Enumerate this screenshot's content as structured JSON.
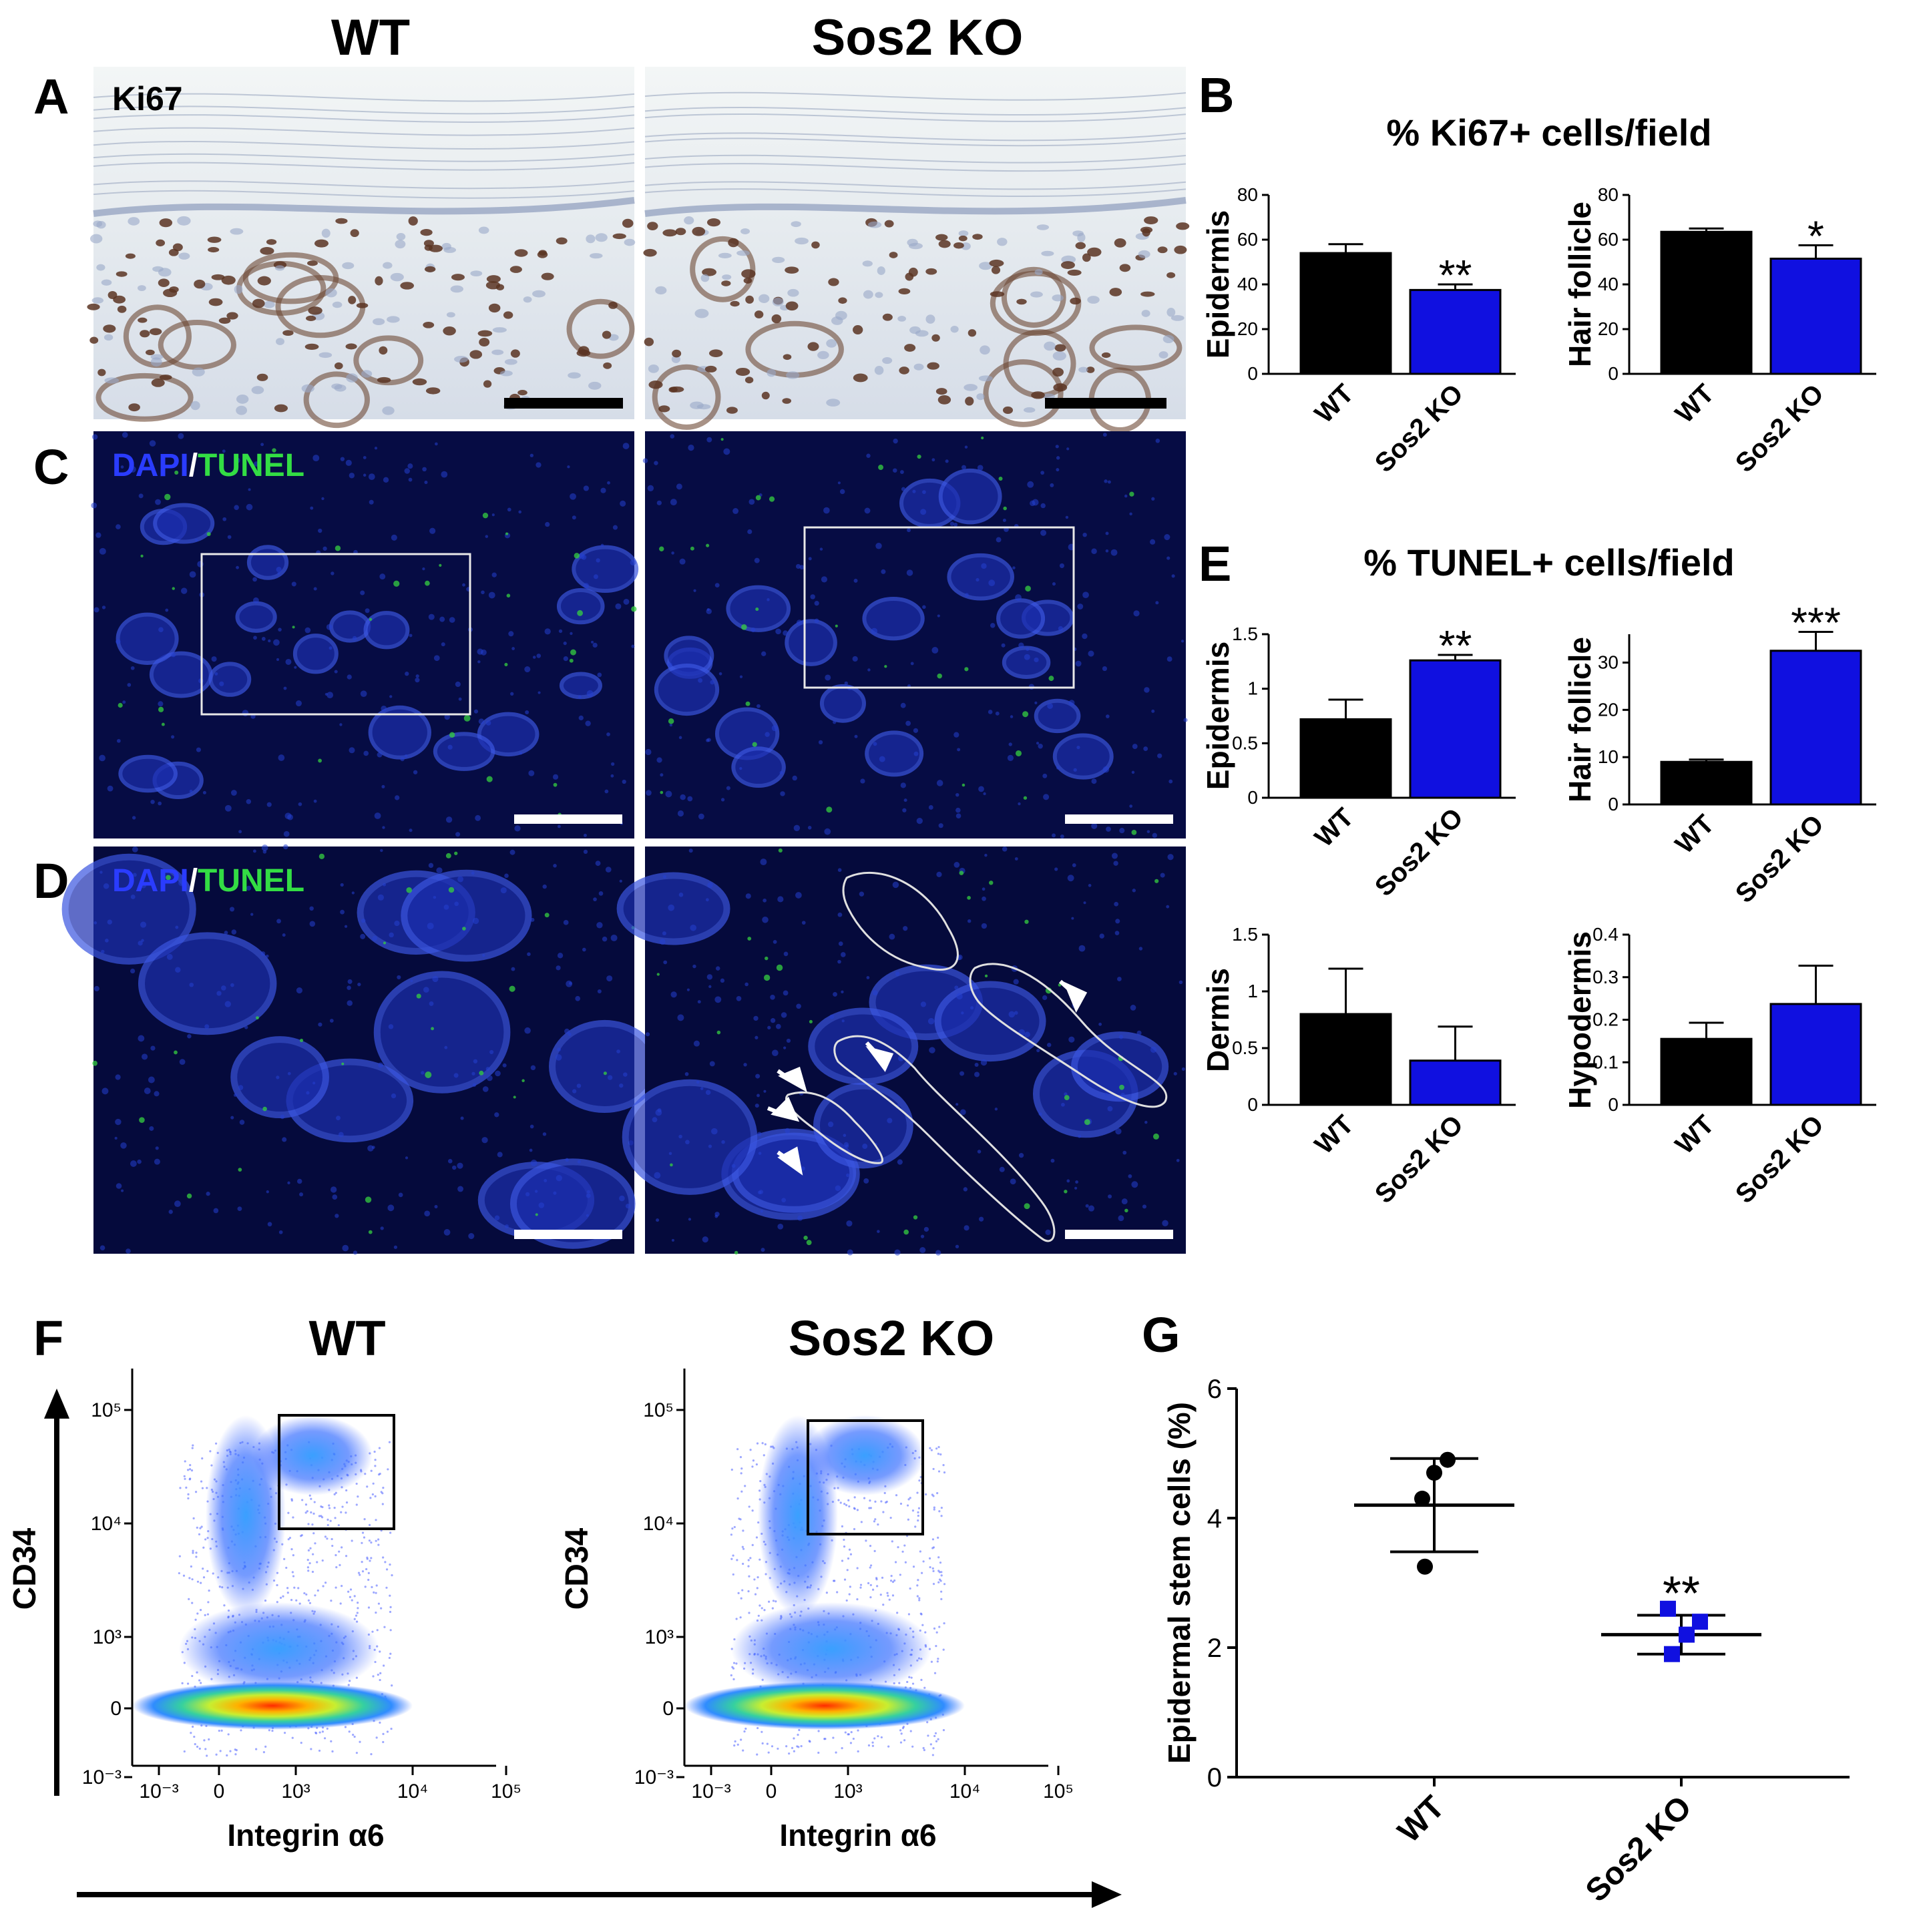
{
  "headers": {
    "wt": "WT",
    "ko": "Sos2 KO"
  },
  "panel_labels": {
    "a": "A",
    "b": "B",
    "c": "C",
    "d": "D",
    "e": "E",
    "f": "F",
    "g": "G"
  },
  "stains": {
    "ki67": "Ki67",
    "dapi": "DAPI",
    "slash": "/",
    "tunel": "TUNEL"
  },
  "colors": {
    "wt": "#000000",
    "ko": "#1010e0",
    "dapi": "#2a3cff",
    "tunel": "#33dd44"
  },
  "panel_b": {
    "title": "% Ki67+ cells/field"
  },
  "panel_e": {
    "title": "% TUNEL+ cells/field"
  },
  "flow": {
    "ylabel": "CD34",
    "xlabel": "Integrin α6",
    "y_ticks": [
      "10⁵",
      "10⁴",
      "10³",
      "0",
      "10⁻³"
    ],
    "x_ticks": [
      "10⁻³",
      "0",
      "10³",
      "10⁴",
      "10⁵"
    ]
  },
  "chart_data": [
    {
      "id": "b-epidermis",
      "type": "bar",
      "categories": [
        "WT",
        "Sos2 KO"
      ],
      "values": [
        54,
        37.5
      ],
      "errors": [
        4,
        2.5
      ],
      "ylabel": "Epidermis",
      "ylim": [
        0,
        80
      ],
      "ticks": [
        0,
        20,
        40,
        60,
        80
      ],
      "significance": [
        "",
        "**"
      ]
    },
    {
      "id": "b-hair",
      "type": "bar",
      "categories": [
        "WT",
        "Sos2 KO"
      ],
      "values": [
        63.5,
        51.5
      ],
      "errors": [
        1.5,
        6
      ],
      "ylabel": "Hair follicle",
      "ylim": [
        0,
        80
      ],
      "ticks": [
        0,
        20,
        40,
        60,
        80
      ],
      "significance": [
        "",
        "*"
      ]
    },
    {
      "id": "e-epidermis",
      "type": "bar",
      "categories": [
        "WT",
        "Sos2 KO"
      ],
      "values": [
        0.72,
        1.26
      ],
      "errors": [
        0.18,
        0.05
      ],
      "ylabel": "Epidermis",
      "ylim": [
        0,
        1.5
      ],
      "ticks": [
        0,
        0.5,
        1.0,
        1.5
      ],
      "significance": [
        "",
        "**"
      ]
    },
    {
      "id": "e-hair",
      "type": "bar",
      "categories": [
        "WT",
        "Sos2 KO"
      ],
      "values": [
        9,
        32.5
      ],
      "errors": [
        0.5,
        4
      ],
      "ylabel": "Hair follicle",
      "ylim": [
        0,
        36
      ],
      "ticks": [
        0,
        10,
        20,
        30
      ],
      "significance": [
        "",
        "***"
      ]
    },
    {
      "id": "e-dermis",
      "type": "bar",
      "categories": [
        "WT",
        "Sos2 KO"
      ],
      "values": [
        0.8,
        0.39
      ],
      "errors": [
        0.4,
        0.3
      ],
      "ylabel": "Dermis",
      "ylim": [
        0,
        1.5
      ],
      "ticks": [
        0,
        0.5,
        1.0,
        1.5
      ],
      "significance": [
        "",
        ""
      ]
    },
    {
      "id": "e-hypodermis",
      "type": "bar",
      "categories": [
        "WT",
        "Sos2 KO"
      ],
      "values": [
        0.155,
        0.237
      ],
      "errors": [
        0.038,
        0.09
      ],
      "ylabel": "Hypodermis",
      "ylim": [
        0,
        0.4
      ],
      "ticks": [
        0,
        0.1,
        0.2,
        0.3,
        0.4
      ],
      "significance": [
        "",
        ""
      ]
    },
    {
      "id": "g-esc",
      "type": "scatter",
      "categories": [
        "WT",
        "Sos2 KO"
      ],
      "points": [
        [
          4.9,
          4.7,
          4.3,
          3.25
        ],
        [
          2.6,
          2.4,
          2.2,
          1.9
        ]
      ],
      "mean": [
        4.2,
        2.2
      ],
      "sd": [
        0.72,
        0.3
      ],
      "ylabel": "Epidermal stem cells (%)",
      "ylim": [
        0,
        6
      ],
      "ticks": [
        0,
        2,
        4,
        6
      ],
      "significance": [
        "",
        "**"
      ]
    }
  ]
}
